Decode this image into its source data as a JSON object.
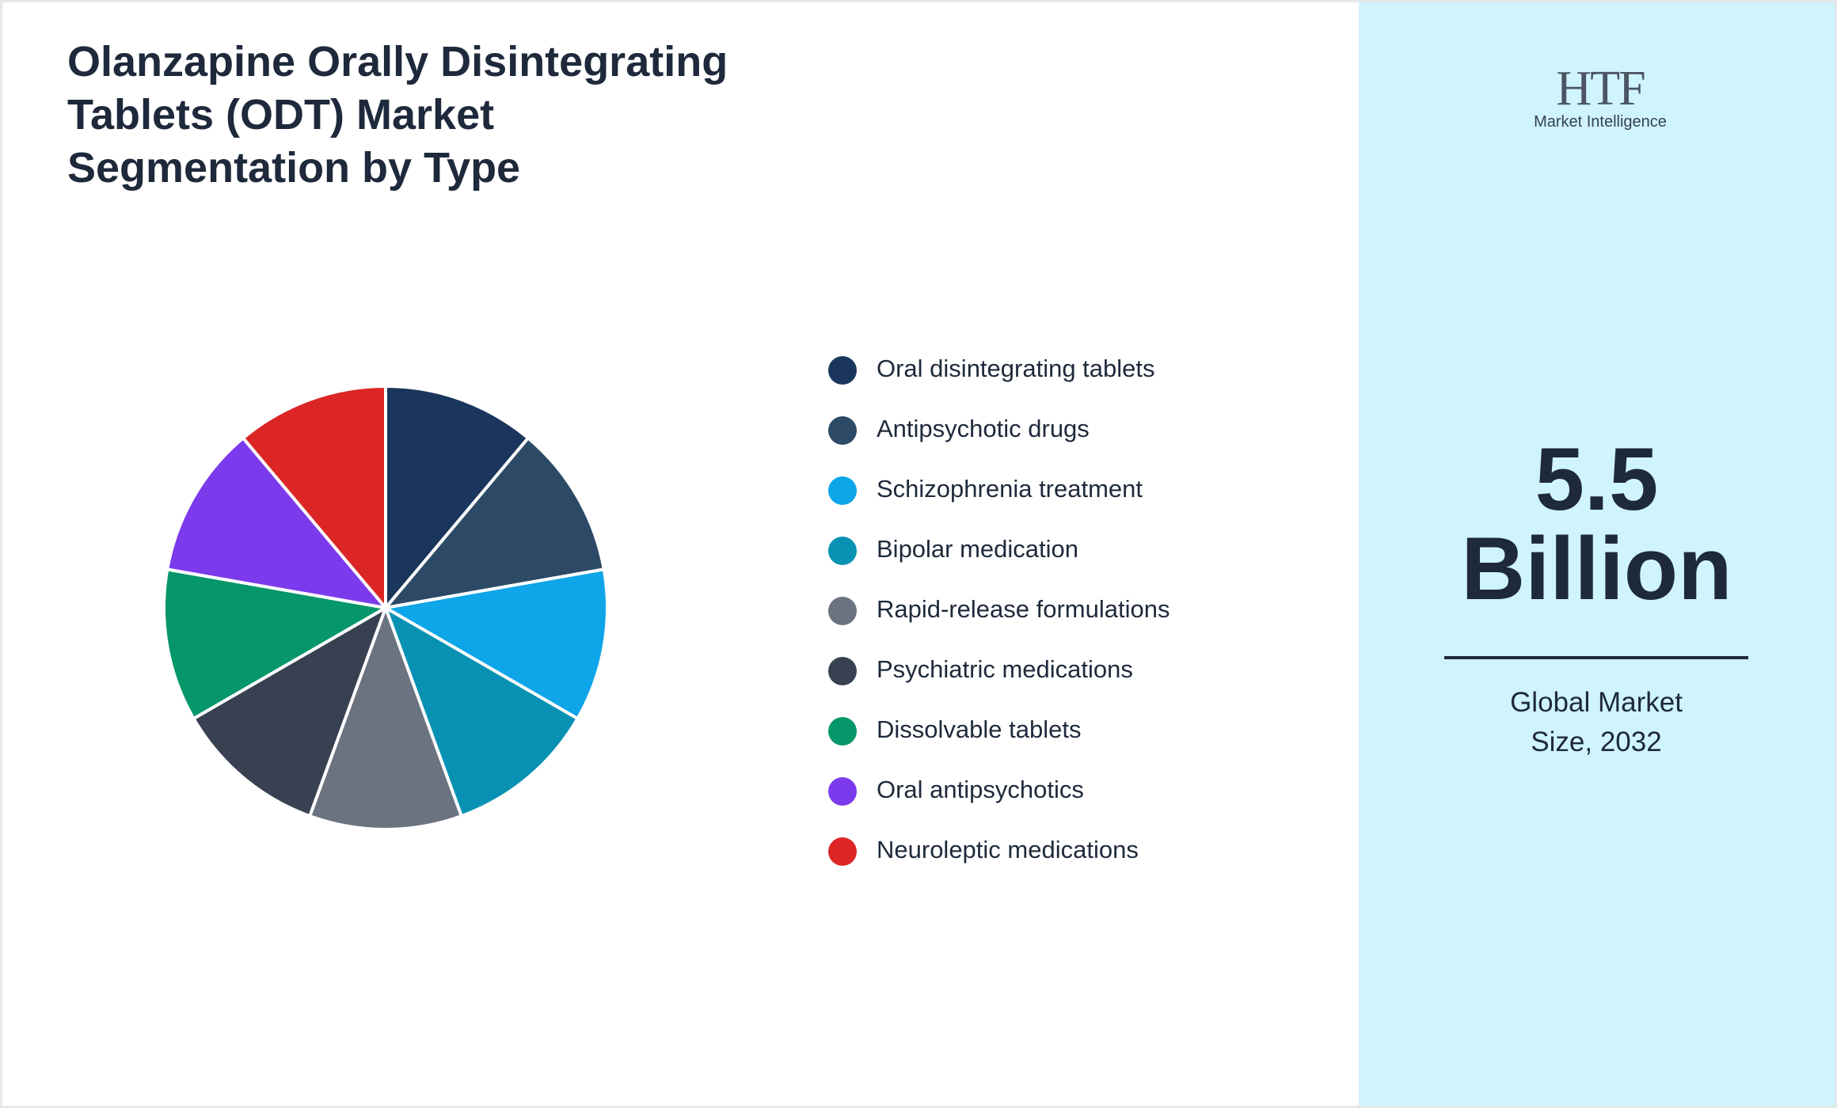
{
  "chart_data": {
    "type": "pie",
    "title": "Olanzapine Orally Disintegrating Tablets (ODT) Market Segmentation by Type",
    "categories": [
      "Oral disintegrating tablets",
      "Antipsychotic drugs",
      "Schizophrenia treatment",
      "Bipolar medication",
      "Rapid-release formulations",
      "Psychiatric medications",
      "Dissolvable tablets",
      "Oral antipsychotics",
      "Neuroleptic medications"
    ],
    "values": [
      11.1,
      11.1,
      11.1,
      11.1,
      11.1,
      11.1,
      11.1,
      11.1,
      11.1
    ],
    "colors": [
      "#1b365d",
      "#2c4a66",
      "#0ea5e9",
      "#0891b2",
      "#6b7280",
      "#374151",
      "#059669",
      "#7c3aed",
      "#dc2626"
    ]
  },
  "logo": {
    "mark": "HTF",
    "name": "Market Intelligence"
  },
  "market_size": {
    "value": 5.5,
    "unit": "Billion",
    "caption": "Global Market Size, 2032"
  }
}
